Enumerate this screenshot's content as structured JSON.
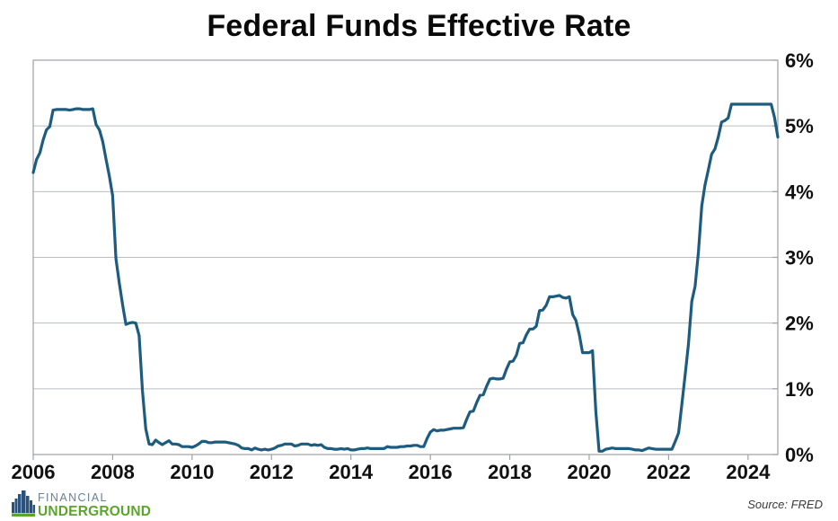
{
  "page": {
    "title": "Federal Funds Effective Rate"
  },
  "footer": {
    "source": "Source: FRED",
    "logo": {
      "line1": "FINANCIAL",
      "line2": "UNDERGROUND",
      "line1_color": "#66809b",
      "line2_color": "#5ca52d",
      "icon_bar_color": "#2a517b",
      "icon_ground_color": "#5ca52d"
    }
  },
  "chart_data": {
    "type": "line",
    "title": "Federal Funds Effective Rate",
    "xlabel": "",
    "ylabel": "",
    "unit": "%",
    "frequency": "monthly",
    "start": "2006-01",
    "end": "2024-10",
    "start_year": 2006,
    "ylim": [
      0,
      6
    ],
    "grid": "horizontal",
    "legend": "none",
    "x_tick_years": [
      2006,
      2008,
      2010,
      2012,
      2014,
      2016,
      2018,
      2020,
      2022,
      2024
    ],
    "y_tick_values": [
      0,
      1,
      2,
      3,
      4,
      5,
      6
    ],
    "y_tick_labels": [
      "0%",
      "1%",
      "2%",
      "3%",
      "4%",
      "5%",
      "6%"
    ],
    "line_color": "#1d5c7f",
    "grid_color": "#b9bdc0",
    "border_color": "#9ca1a6",
    "values": [
      4.29,
      4.49,
      4.59,
      4.79,
      4.94,
      4.99,
      5.24,
      5.25,
      5.25,
      5.25,
      5.25,
      5.24,
      5.25,
      5.26,
      5.26,
      5.25,
      5.25,
      5.25,
      5.26,
      5.02,
      4.94,
      4.76,
      4.49,
      4.24,
      3.94,
      2.98,
      2.61,
      2.28,
      1.98,
      2.0,
      2.01,
      2.0,
      1.81,
      0.97,
      0.39,
      0.16,
      0.15,
      0.22,
      0.18,
      0.15,
      0.18,
      0.21,
      0.16,
      0.16,
      0.15,
      0.12,
      0.12,
      0.12,
      0.11,
      0.13,
      0.16,
      0.2,
      0.2,
      0.18,
      0.18,
      0.19,
      0.19,
      0.19,
      0.19,
      0.18,
      0.17,
      0.16,
      0.14,
      0.1,
      0.09,
      0.09,
      0.07,
      0.1,
      0.08,
      0.07,
      0.08,
      0.07,
      0.08,
      0.1,
      0.13,
      0.14,
      0.16,
      0.16,
      0.16,
      0.13,
      0.14,
      0.16,
      0.16,
      0.16,
      0.14,
      0.15,
      0.14,
      0.15,
      0.11,
      0.09,
      0.09,
      0.08,
      0.08,
      0.09,
      0.08,
      0.09,
      0.07,
      0.07,
      0.08,
      0.09,
      0.09,
      0.1,
      0.09,
      0.09,
      0.09,
      0.09,
      0.09,
      0.12,
      0.11,
      0.11,
      0.11,
      0.12,
      0.12,
      0.13,
      0.13,
      0.14,
      0.14,
      0.12,
      0.12,
      0.24,
      0.34,
      0.38,
      0.36,
      0.37,
      0.37,
      0.38,
      0.39,
      0.4,
      0.4,
      0.4,
      0.41,
      0.54,
      0.65,
      0.66,
      0.79,
      0.9,
      0.91,
      1.04,
      1.15,
      1.16,
      1.15,
      1.15,
      1.16,
      1.3,
      1.41,
      1.42,
      1.51,
      1.69,
      1.7,
      1.82,
      1.91,
      1.91,
      1.95,
      2.19,
      2.2,
      2.27,
      2.4,
      2.4,
      2.41,
      2.42,
      2.39,
      2.38,
      2.4,
      2.13,
      2.04,
      1.83,
      1.55,
      1.55,
      1.55,
      1.58,
      0.65,
      0.05,
      0.05,
      0.08,
      0.09,
      0.1,
      0.09,
      0.09,
      0.09,
      0.09,
      0.09,
      0.08,
      0.07,
      0.07,
      0.06,
      0.08,
      0.1,
      0.09,
      0.08,
      0.08,
      0.08,
      0.08,
      0.08,
      0.08,
      0.2,
      0.33,
      0.77,
      1.21,
      1.68,
      2.33,
      2.56,
      3.08,
      3.78,
      4.1,
      4.33,
      4.57,
      4.65,
      4.83,
      5.06,
      5.08,
      5.12,
      5.33,
      5.33,
      5.33,
      5.33,
      5.33,
      5.33,
      5.33,
      5.33,
      5.33,
      5.33,
      5.33,
      5.33,
      5.33,
      5.13,
      4.83
    ]
  }
}
